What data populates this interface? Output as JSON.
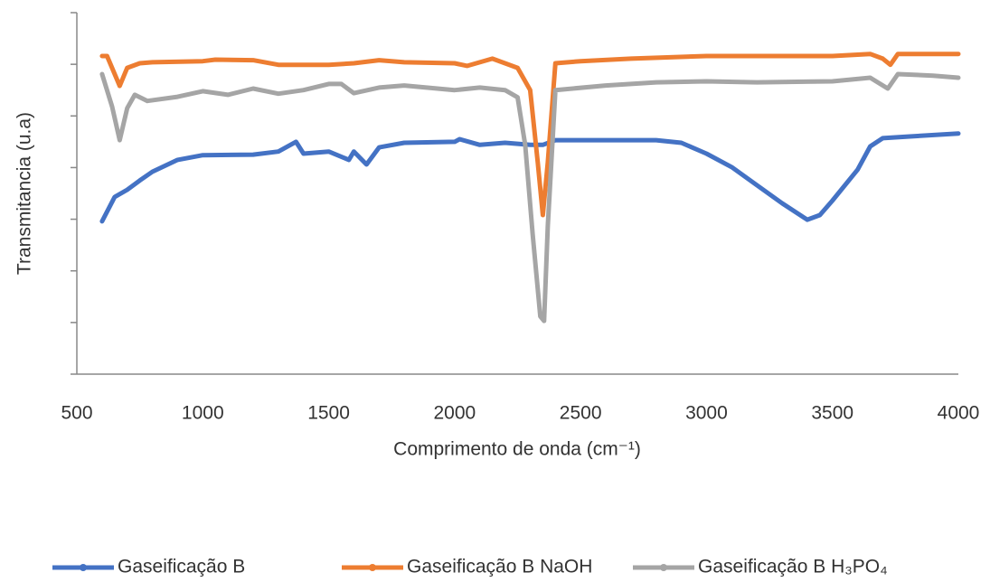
{
  "chart_data": {
    "type": "line",
    "x_label": "Comprimento de onda (cm⁻¹)",
    "y_label": "Transmitancia (u.a)",
    "xlim": [
      500,
      4000
    ],
    "xticks": [
      500,
      1000,
      1500,
      2000,
      2500,
      3000,
      3500,
      4000
    ],
    "ylim": [
      0,
      7
    ],
    "yticks": [
      0,
      1,
      2,
      3,
      4,
      5,
      6,
      7
    ],
    "legend": "bottom",
    "series": [
      {
        "name": "Gaseificação B",
        "color": "#4472c4",
        "x": [
          600,
          650,
          700,
          750,
          800,
          900,
          1000,
          1200,
          1300,
          1370,
          1400,
          1500,
          1580,
          1600,
          1650,
          1700,
          1800,
          2000,
          2020,
          2100,
          2200,
          2300,
          2350,
          2400,
          2800,
          2900,
          3000,
          3100,
          3200,
          3300,
          3400,
          3450,
          3500,
          3600,
          3650,
          3700,
          3800,
          4000
        ],
        "values": [
          2.96,
          3.43,
          3.57,
          3.75,
          3.92,
          4.15,
          4.24,
          4.25,
          4.31,
          4.5,
          4.27,
          4.31,
          4.15,
          4.31,
          4.06,
          4.39,
          4.48,
          4.5,
          4.55,
          4.44,
          4.48,
          4.44,
          4.44,
          4.53,
          4.53,
          4.48,
          4.27,
          4.01,
          3.66,
          3.31,
          2.99,
          3.08,
          3.36,
          3.96,
          4.41,
          4.57,
          4.6,
          4.66
        ]
      },
      {
        "name": "Gaseificação B NaOH",
        "color": "#ed7d31",
        "x": [
          600,
          620,
          670,
          700,
          750,
          800,
          1000,
          1050,
          1200,
          1300,
          1500,
          1600,
          1700,
          1800,
          2000,
          2050,
          2150,
          2250,
          2300,
          2330,
          2350,
          2370,
          2400,
          2500,
          2700,
          3000,
          3500,
          3650,
          3700,
          3730,
          3760,
          4000
        ],
        "values": [
          6.16,
          6.16,
          5.58,
          5.93,
          6.02,
          6.04,
          6.06,
          6.09,
          6.08,
          5.99,
          5.99,
          6.02,
          6.08,
          6.04,
          6.02,
          5.97,
          6.11,
          5.93,
          5.5,
          4.1,
          3.08,
          4.1,
          6.02,
          6.06,
          6.11,
          6.16,
          6.16,
          6.2,
          6.11,
          5.99,
          6.2,
          6.2
        ]
      },
      {
        "name": "Gaseificação B H₃PO₄",
        "color": "#a5a5a5",
        "x": [
          600,
          640,
          670,
          700,
          730,
          780,
          900,
          1000,
          1100,
          1200,
          1300,
          1400,
          1500,
          1550,
          1600,
          1700,
          1800,
          2000,
          2100,
          2200,
          2250,
          2280,
          2310,
          2340,
          2355,
          2370,
          2400,
          2600,
          2800,
          3000,
          3200,
          3500,
          3650,
          3720,
          3760,
          3900,
          4000
        ],
        "values": [
          5.81,
          5.18,
          4.53,
          5.15,
          5.41,
          5.29,
          5.37,
          5.48,
          5.41,
          5.53,
          5.43,
          5.5,
          5.62,
          5.62,
          5.44,
          5.55,
          5.59,
          5.5,
          5.55,
          5.5,
          5.36,
          4.44,
          2.7,
          1.12,
          1.03,
          2.87,
          5.5,
          5.59,
          5.65,
          5.67,
          5.65,
          5.67,
          5.74,
          5.53,
          5.81,
          5.78,
          5.74
        ]
      }
    ]
  }
}
